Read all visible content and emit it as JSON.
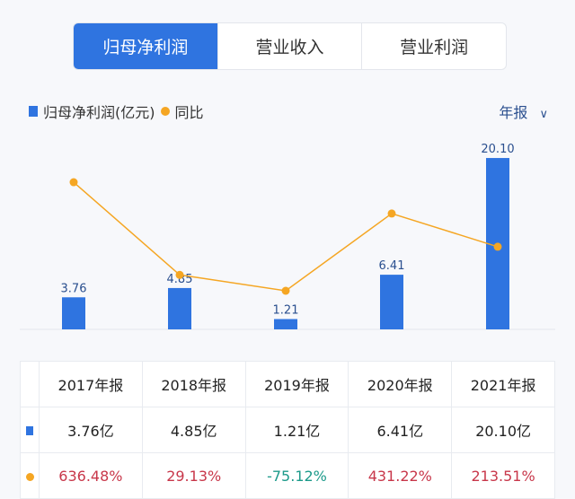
{
  "tabs": [
    {
      "label": "归母净利润",
      "active": true
    },
    {
      "label": "营业收入",
      "active": false
    },
    {
      "label": "营业利润",
      "active": false
    }
  ],
  "period_select": {
    "value": "年报",
    "icon": "chevron-down-icon"
  },
  "colors": {
    "bar": "#2f74e0",
    "line": "#f5a623",
    "positive": "#c8374a",
    "negative": "#1c9a8a"
  },
  "chart_data": {
    "type": "bar+line",
    "categories": [
      "2017年报",
      "2018年报",
      "2019年报",
      "2020年报",
      "2021年报"
    ],
    "series": [
      {
        "name": "归母净利润(亿元)",
        "type": "bar",
        "values": [
          3.76,
          4.85,
          1.21,
          6.41,
          20.1
        ],
        "labels": [
          "3.76",
          "4.85",
          "1.21",
          "6.41",
          "20.10"
        ]
      },
      {
        "name": "同比",
        "type": "line",
        "values": [
          636.48,
          29.13,
          -75.12,
          431.22,
          213.51
        ]
      }
    ],
    "legend": "top-left",
    "grid": false
  },
  "table": {
    "headers": [
      "2017年报",
      "2018年报",
      "2019年报",
      "2020年报",
      "2021年报"
    ],
    "values": [
      "3.76亿",
      "4.85亿",
      "1.21亿",
      "6.41亿",
      "20.10亿"
    ],
    "yoy": [
      "636.48%",
      "29.13%",
      "-75.12%",
      "431.22%",
      "213.51%"
    ]
  }
}
